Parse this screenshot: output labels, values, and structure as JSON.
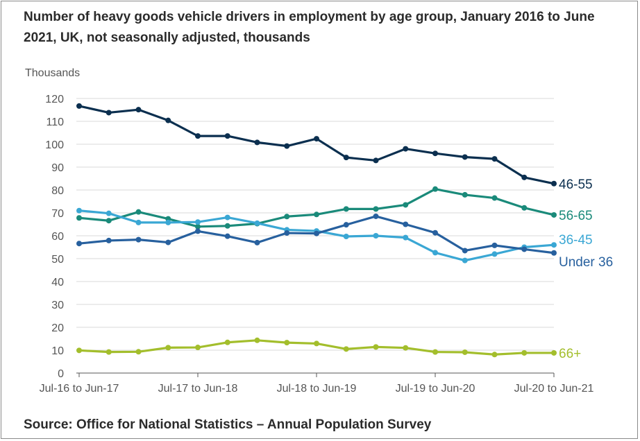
{
  "title": "Number of heavy goods vehicle drivers in employment by age group, January 2016 to June 2021, UK, not seasonally adjusted, thousands",
  "source": "Source: Office for National Statistics – Annual Population Survey",
  "chart_data": {
    "type": "line",
    "title": "Number of heavy goods vehicle drivers in employment by age group, January 2016 to June 2021, UK, not seasonally adjusted, thousands",
    "xlabel": "",
    "ylabel": "Thousands",
    "ylim": [
      0,
      120
    ],
    "yticks": [
      0,
      10,
      20,
      30,
      40,
      50,
      60,
      70,
      80,
      90,
      100,
      110,
      120
    ],
    "grid": true,
    "legend": "inline-right",
    "x_tick_labels": [
      "Jul-16 to Jun-17",
      "Jul-17 to Jun-18",
      "Jul-18 to Jun-19",
      "Jul-19 to Jun-20",
      "Jul-20 to Jun-21"
    ],
    "x_tick_positions": [
      0,
      4,
      8,
      12,
      16
    ],
    "n_points": 17,
    "series": [
      {
        "name": "46-55",
        "color": "#0b2f4f",
        "values": [
          116.7,
          113.8,
          115.1,
          110.4,
          103.6,
          103.6,
          100.8,
          99.2,
          102.4,
          94.2,
          92.9,
          98.0,
          96.0,
          94.4,
          93.6,
          85.5,
          82.8
        ]
      },
      {
        "name": "56-65",
        "color": "#1a8a7a",
        "values": [
          67.8,
          66.6,
          70.4,
          67.4,
          64.0,
          64.3,
          65.3,
          68.4,
          69.3,
          71.7,
          71.7,
          73.5,
          80.4,
          77.9,
          76.5,
          72.2,
          69.1
        ]
      },
      {
        "name": "36-45",
        "color": "#3aa7d4",
        "values": [
          71.0,
          69.8,
          65.8,
          65.8,
          66.0,
          68.0,
          65.5,
          62.6,
          62.1,
          59.7,
          60.0,
          59.2,
          52.6,
          49.2,
          52.0,
          55.0,
          56.0
        ]
      },
      {
        "name": "Under 36",
        "color": "#27609e",
        "values": [
          56.6,
          57.9,
          58.3,
          57.1,
          62.0,
          59.8,
          57.0,
          61.2,
          61.0,
          64.8,
          68.5,
          65.0,
          61.3,
          53.5,
          55.8,
          54.1,
          52.5
        ]
      },
      {
        "name": "66+",
        "color": "#a3be2c",
        "values": [
          9.9,
          9.2,
          9.3,
          11.1,
          11.2,
          13.4,
          14.3,
          13.3,
          12.9,
          10.5,
          11.4,
          11.0,
          9.2,
          9.1,
          8.1,
          8.8,
          8.8
        ]
      }
    ]
  }
}
